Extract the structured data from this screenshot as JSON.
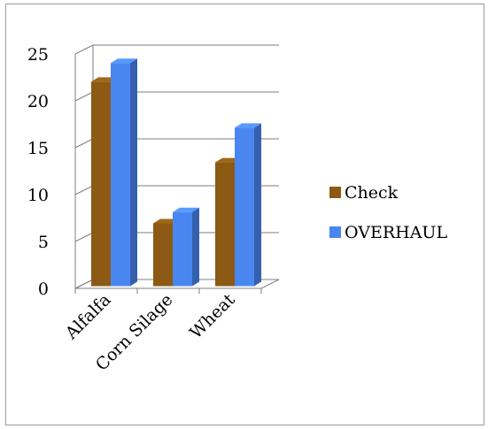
{
  "chart_data": {
    "type": "bar",
    "title": "",
    "xlabel": "",
    "ylabel": "",
    "categories": [
      "Alfalfa",
      "Corn Silage",
      "Wheat"
    ],
    "series": [
      {
        "name": "Check",
        "values": [
          21.8,
          6.7,
          13.2
        ],
        "color": "#8c5a14"
      },
      {
        "name": "OVERHAUL",
        "values": [
          23.8,
          7.9,
          16.9
        ],
        "color": "#4a86f0"
      }
    ],
    "ylim": [
      0,
      25
    ],
    "yticks": [
      0,
      5,
      10,
      15,
      20,
      25
    ],
    "grid": true,
    "legend_position": "right",
    "style": "3d-clustered-column"
  }
}
